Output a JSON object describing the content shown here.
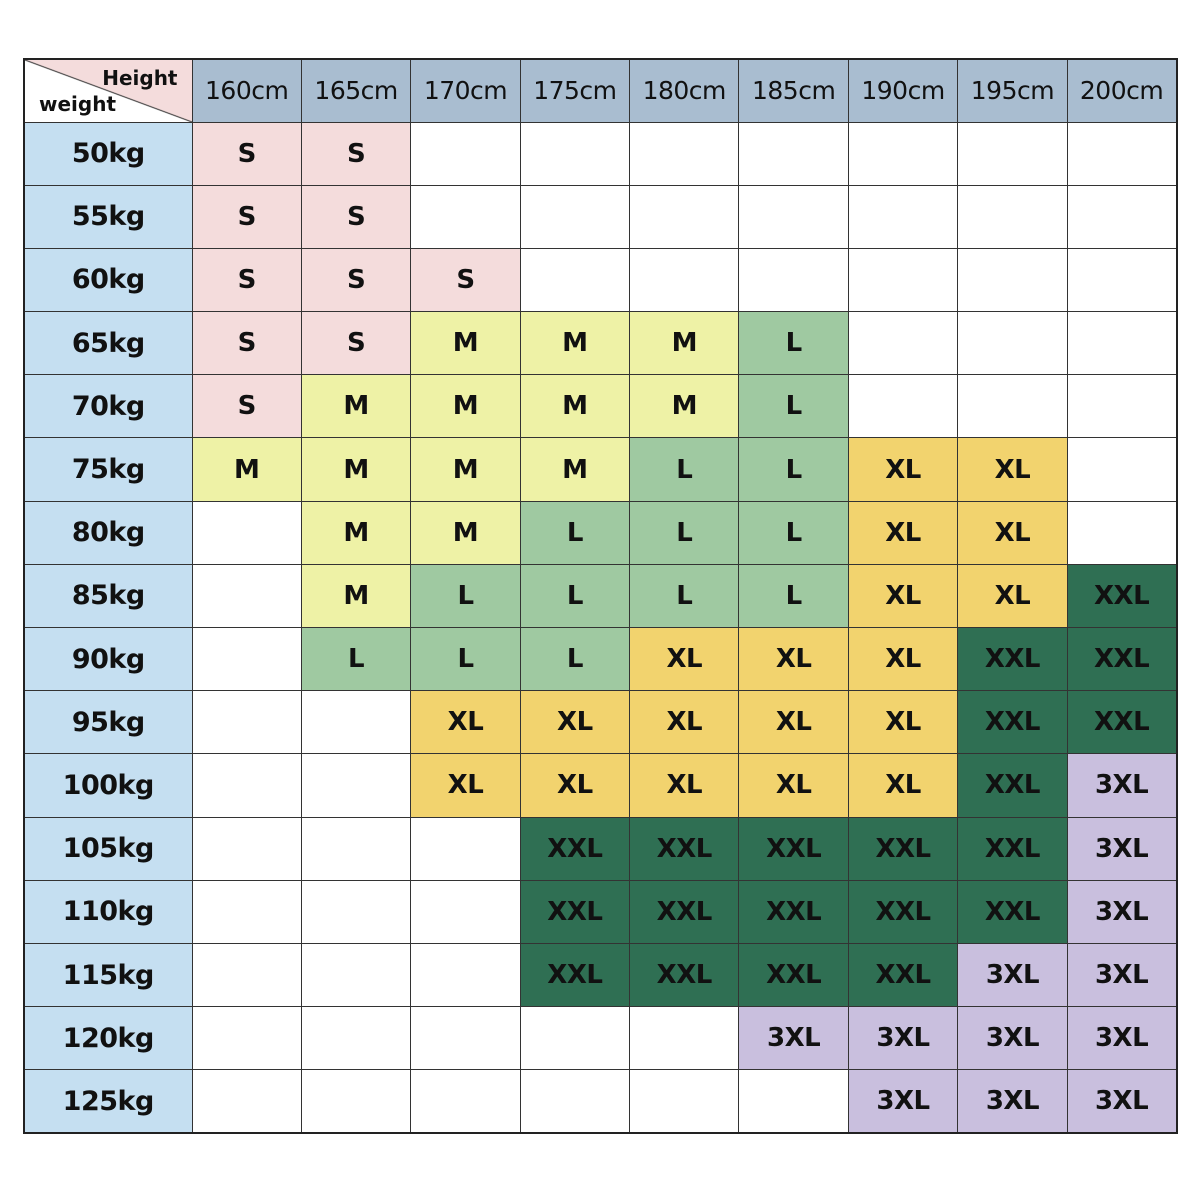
{
  "corner": {
    "height_label": "Height",
    "weight_label": "weight"
  },
  "heights": [
    "160cm",
    "165cm",
    "170cm",
    "175cm",
    "180cm",
    "185cm",
    "190cm",
    "195cm",
    "200cm"
  ],
  "colors": {
    "header_height": "#a9bdd0",
    "header_weight": "#c5dff1",
    "S": "#f4dcdc",
    "M": "#eef2a6",
    "L": "#9fc9a1",
    "XL": "#f2d36e",
    "XXL": "#2f6f53",
    "3XL": "#c9bfde",
    "empty": "#ffffff"
  },
  "rows": [
    {
      "weight": "50kg",
      "sizes": [
        "S",
        "S",
        "",
        "",
        "",
        "",
        "",
        "",
        ""
      ]
    },
    {
      "weight": "55kg",
      "sizes": [
        "S",
        "S",
        "",
        "",
        "",
        "",
        "",
        "",
        ""
      ]
    },
    {
      "weight": "60kg",
      "sizes": [
        "S",
        "S",
        "S",
        "",
        "",
        "",
        "",
        "",
        ""
      ]
    },
    {
      "weight": "65kg",
      "sizes": [
        "S",
        "S",
        "M",
        "M",
        "M",
        "L",
        "",
        "",
        ""
      ]
    },
    {
      "weight": "70kg",
      "sizes": [
        "S",
        "M",
        "M",
        "M",
        "M",
        "L",
        "",
        "",
        ""
      ]
    },
    {
      "weight": "75kg",
      "sizes": [
        "M",
        "M",
        "M",
        "M",
        "L",
        "L",
        "XL",
        "XL",
        ""
      ]
    },
    {
      "weight": "80kg",
      "sizes": [
        "",
        "M",
        "M",
        "L",
        "L",
        "L",
        "XL",
        "XL",
        ""
      ]
    },
    {
      "weight": "85kg",
      "sizes": [
        "",
        "M",
        "L",
        "L",
        "L",
        "L",
        "XL",
        "XL",
        "XXL"
      ]
    },
    {
      "weight": "90kg",
      "sizes": [
        "",
        "L",
        "L",
        "L",
        "XL",
        "XL",
        "XL",
        "XXL",
        "XXL"
      ]
    },
    {
      "weight": "95kg",
      "sizes": [
        "",
        "",
        "XL",
        "XL",
        "XL",
        "XL",
        "XL",
        "XXL",
        "XXL"
      ]
    },
    {
      "weight": "100kg",
      "sizes": [
        "",
        "",
        "XL",
        "XL",
        "XL",
        "XL",
        "XL",
        "XXL",
        "3XL"
      ]
    },
    {
      "weight": "105kg",
      "sizes": [
        "",
        "",
        "",
        "XXL",
        "XXL",
        "XXL",
        "XXL",
        "XXL",
        "3XL"
      ]
    },
    {
      "weight": "110kg",
      "sizes": [
        "",
        "",
        "",
        "XXL",
        "XXL",
        "XXL",
        "XXL",
        "XXL",
        "3XL"
      ]
    },
    {
      "weight": "115kg",
      "sizes": [
        "",
        "",
        "",
        "XXL",
        "XXL",
        "XXL",
        "XXL",
        "3XL",
        "3XL"
      ]
    },
    {
      "weight": "120kg",
      "sizes": [
        "",
        "",
        "",
        "",
        "",
        "3XL",
        "3XL",
        "3XL",
        "3XL"
      ]
    },
    {
      "weight": "125kg",
      "sizes": [
        "",
        "",
        "",
        "",
        "",
        "",
        "3XL",
        "3XL",
        "3XL"
      ]
    }
  ]
}
